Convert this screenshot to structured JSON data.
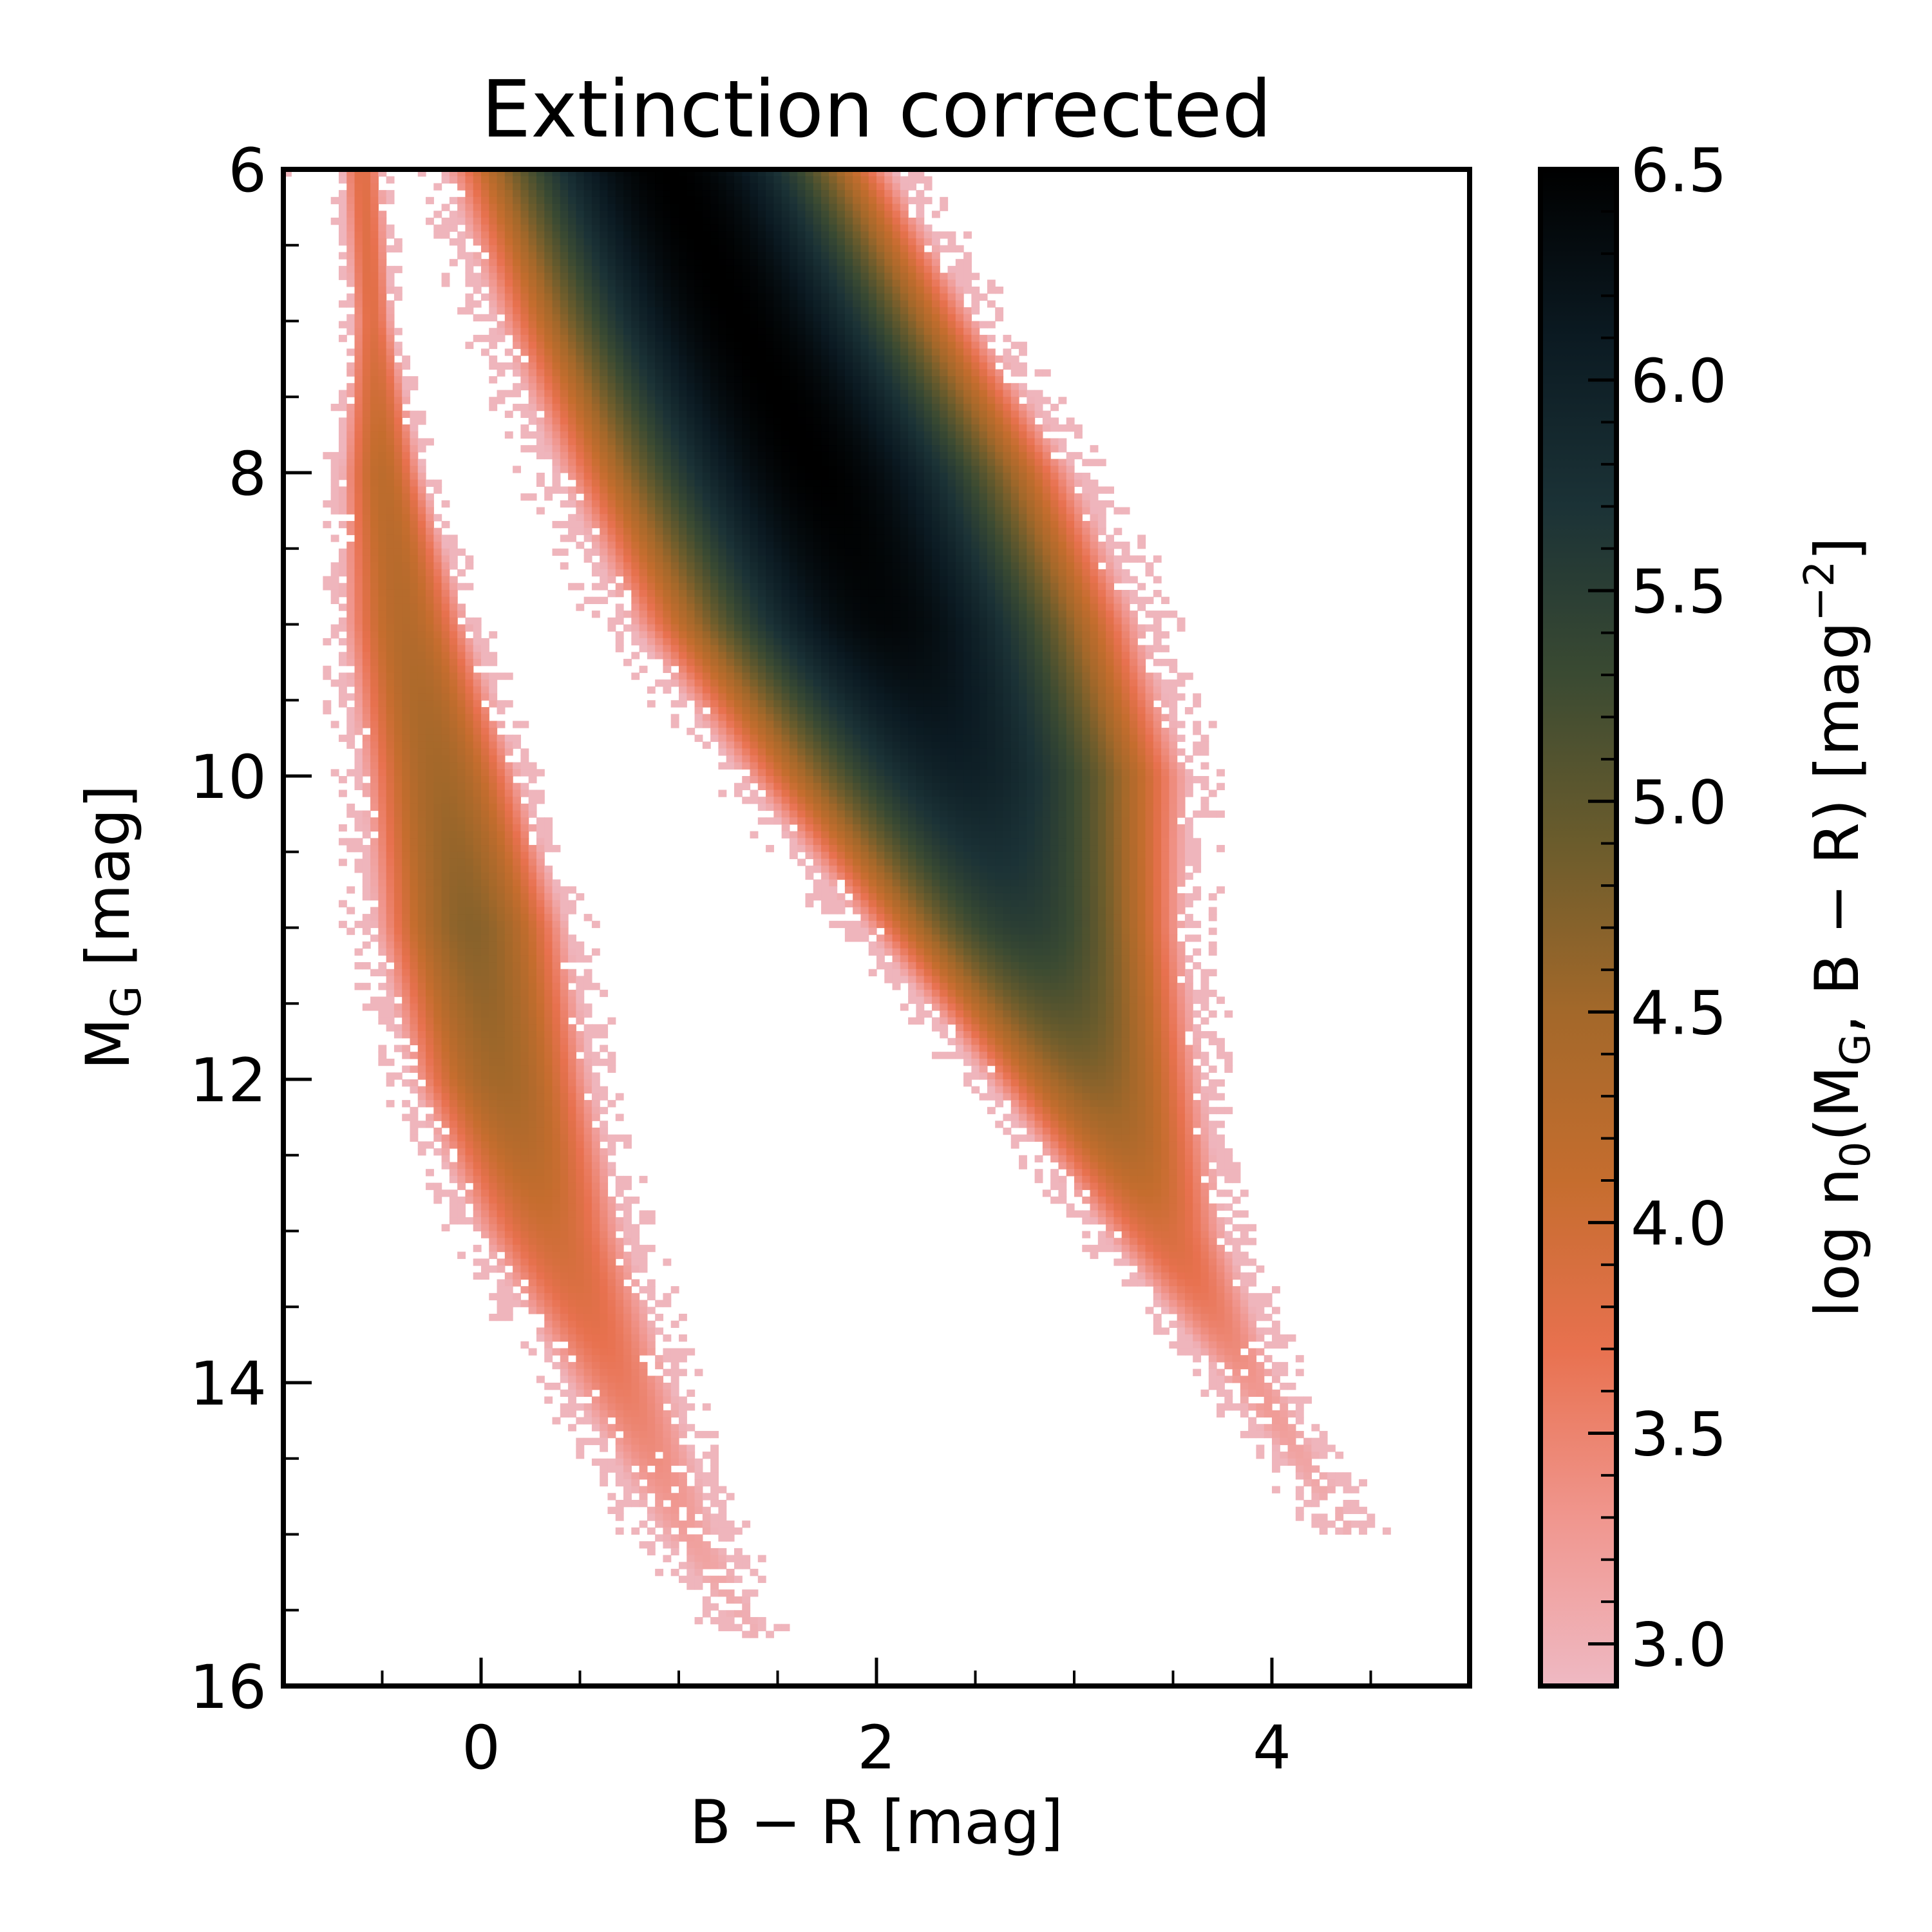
{
  "chart_data": {
    "type": "heatmap",
    "title": "Extinction corrected",
    "xlabel": "B − R [mag]",
    "ylabel": "M_G [mag]",
    "ylabel_main": "M",
    "ylabel_sub": "G",
    "ylabel_unit": " [mag]",
    "xlim": [
      -1.0,
      5.0
    ],
    "ylim": [
      16,
      6
    ],
    "x_ticks": [
      0,
      2,
      4
    ],
    "x_tick_labels": [
      "0",
      "2",
      "4"
    ],
    "x_minor_step": 0.5,
    "y_ticks": [
      6,
      8,
      10,
      12,
      14,
      16
    ],
    "y_tick_labels": [
      "6",
      "8",
      "10",
      "12",
      "14",
      "16"
    ],
    "y_minor_step": 0.5,
    "grid": false,
    "colorbar": {
      "label": "log n₀(M_G, B − R) [mag⁻²]",
      "label_parts": [
        "log n",
        "0",
        "(M",
        "G",
        ", B − R) [mag",
        "−2",
        "]"
      ],
      "range": [
        2.9,
        6.5
      ],
      "ticks": [
        3.0,
        3.5,
        4.0,
        4.5,
        5.0,
        5.5,
        6.0,
        6.5
      ],
      "tick_labels": [
        "3.0",
        "3.5",
        "4.0",
        "4.5",
        "5.0",
        "5.5",
        "6.0",
        "6.5"
      ],
      "minor_step": 0.1,
      "colormap": [
        "#efb9c3",
        "#f0968e",
        "#e8714f",
        "#c56d2e",
        "#a3682a",
        "#6b5c2c",
        "#3a4a32",
        "#1b3236",
        "#0b1a22",
        "#000000"
      ]
    },
    "features": [
      {
        "name": "main sequence",
        "ridge": [
          [
            0.95,
            6.0
          ],
          [
            1.3,
            7.0
          ],
          [
            1.7,
            8.0
          ],
          [
            2.05,
            9.0
          ],
          [
            2.45,
            10.0
          ],
          [
            2.75,
            11.0
          ],
          [
            3.1,
            12.0
          ],
          [
            3.45,
            13.0
          ],
          [
            3.9,
            14.0
          ],
          [
            4.4,
            15.0
          ]
        ],
        "peak_log_density": [
          6.5,
          6.5,
          6.5,
          6.4,
          6.0,
          5.5,
          4.7,
          3.9,
          3.3,
          3.0
        ],
        "halfwidth_mag": [
          0.65,
          0.7,
          0.75,
          0.75,
          0.7,
          0.55,
          0.45,
          0.35,
          0.25,
          0.2
        ]
      },
      {
        "name": "white dwarf sequence",
        "ridge": [
          [
            -0.55,
            7.0
          ],
          [
            -0.5,
            8.0
          ],
          [
            -0.38,
            9.0
          ],
          [
            -0.2,
            10.0
          ],
          [
            -0.05,
            11.0
          ],
          [
            0.1,
            12.0
          ],
          [
            0.35,
            13.0
          ],
          [
            0.7,
            14.0
          ],
          [
            1.05,
            15.0
          ],
          [
            1.4,
            15.7
          ]
        ],
        "peak_log_density": [
          3.8,
          4.2,
          4.3,
          4.5,
          4.7,
          4.5,
          4.0,
          3.6,
          3.2,
          3.0
        ],
        "halfwidth_mag": [
          0.12,
          0.2,
          0.3,
          0.35,
          0.4,
          0.4,
          0.4,
          0.35,
          0.3,
          0.2
        ]
      }
    ]
  }
}
